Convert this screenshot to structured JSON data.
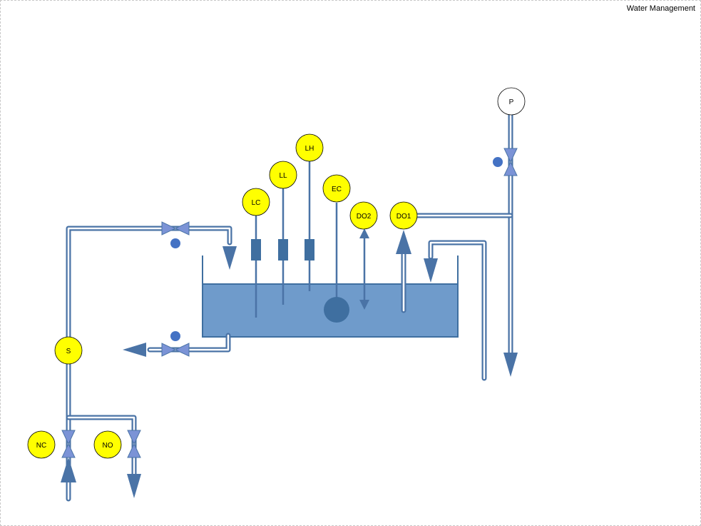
{
  "title": "Water Management",
  "colors": {
    "pipe": "#4a73a6",
    "pipe_inner": "#ffffff",
    "water": "#6f9bcb",
    "tank_outline": "#3f6fa0",
    "sensor_fill": "#ffff00",
    "valve": "#7b93d6",
    "actuator_dot": "#4472c4"
  },
  "sensors": {
    "LC": "LC",
    "LL": "LL",
    "LH": "LH",
    "EC": "EC",
    "DO2": "DO2",
    "DO1": "DO1",
    "S": "S",
    "NC": "NC",
    "NO": "NO",
    "P": "P"
  }
}
